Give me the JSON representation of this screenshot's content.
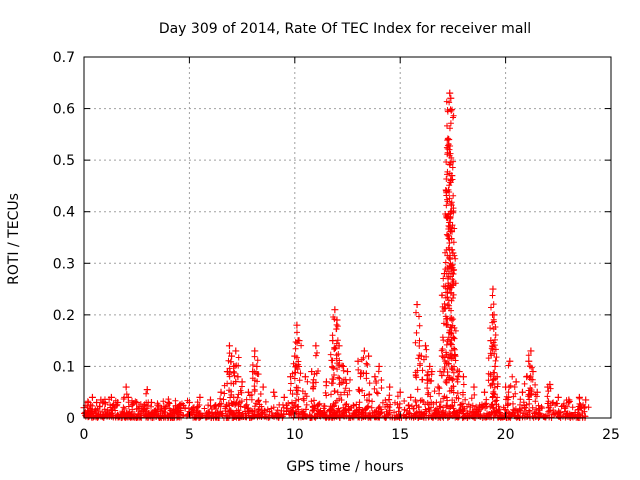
{
  "chart_data": {
    "type": "scatter",
    "title": "Day 309 of 2014, Rate Of TEC Index for receiver mall",
    "xlabel": "GPS time / hours",
    "ylabel": "ROTI / TECUs",
    "xlim": [
      0,
      25
    ],
    "ylim": [
      0,
      0.7
    ],
    "xticks": [
      0,
      5,
      10,
      15,
      20,
      25
    ],
    "yticks": [
      0,
      0.1,
      0.2,
      0.3,
      0.4,
      0.5,
      0.6,
      0.7
    ],
    "xtick_labels": [
      "0",
      "5",
      "10",
      "15",
      "20",
      "25"
    ],
    "ytick_labels": [
      "0",
      "0.1",
      "0.2",
      "0.3",
      "0.4",
      "0.5",
      "0.6",
      "0.7"
    ],
    "grid": true,
    "marker": "+",
    "color": "#ff0000",
    "series": [
      {
        "name": "ROTI",
        "x": [
          0.0,
          0.2,
          0.4,
          0.6,
          0.8,
          1.0,
          1.3,
          1.6,
          2.0,
          2.1,
          2.5,
          3.0,
          3.2,
          3.5,
          4.0,
          4.5,
          5.0,
          5.5,
          6.0,
          6.5,
          6.8,
          6.9,
          7.0,
          7.1,
          7.2,
          7.3,
          7.5,
          7.8,
          8.0,
          8.1,
          8.2,
          8.5,
          9.0,
          9.5,
          9.8,
          10.0,
          10.1,
          10.2,
          10.5,
          10.8,
          11.0,
          11.5,
          11.8,
          11.9,
          12.0,
          12.1,
          12.3,
          12.5,
          13.0,
          13.3,
          13.5,
          13.8,
          14.0,
          14.5,
          15.0,
          15.5,
          15.8,
          16.0,
          16.2,
          16.4,
          16.5,
          16.8,
          17.0,
          17.1,
          17.2,
          17.3,
          17.35,
          17.4,
          17.45,
          17.5,
          17.6,
          17.8,
          18.0,
          18.5,
          19.0,
          19.3,
          19.4,
          19.45,
          19.5,
          19.6,
          20.0,
          20.2,
          20.5,
          20.8,
          21.0,
          21.1,
          21.2,
          21.3,
          21.5,
          22.0,
          22.1,
          22.5,
          23.0,
          23.5,
          23.8
        ],
        "y": [
          0.02,
          0.03,
          0.04,
          0.03,
          0.035,
          0.03,
          0.04,
          0.03,
          0.06,
          0.04,
          0.03,
          0.055,
          0.03,
          0.025,
          0.03,
          0.02,
          0.03,
          0.04,
          0.035,
          0.05,
          0.09,
          0.14,
          0.12,
          0.1,
          0.13,
          0.08,
          0.07,
          0.05,
          0.09,
          0.13,
          0.1,
          0.06,
          0.05,
          0.04,
          0.08,
          0.12,
          0.18,
          0.15,
          0.08,
          0.09,
          0.14,
          0.07,
          0.15,
          0.21,
          0.19,
          0.14,
          0.1,
          0.09,
          0.11,
          0.13,
          0.12,
          0.08,
          0.1,
          0.06,
          0.05,
          0.04,
          0.22,
          0.12,
          0.14,
          0.1,
          0.09,
          0.06,
          0.12,
          0.28,
          0.44,
          0.54,
          0.63,
          0.62,
          0.47,
          0.32,
          0.12,
          0.09,
          0.08,
          0.06,
          0.05,
          0.15,
          0.25,
          0.2,
          0.1,
          0.08,
          0.06,
          0.11,
          0.07,
          0.05,
          0.08,
          0.11,
          0.13,
          0.09,
          0.05,
          0.06,
          0.065,
          0.04,
          0.035,
          0.04,
          0.035
        ]
      }
    ]
  }
}
